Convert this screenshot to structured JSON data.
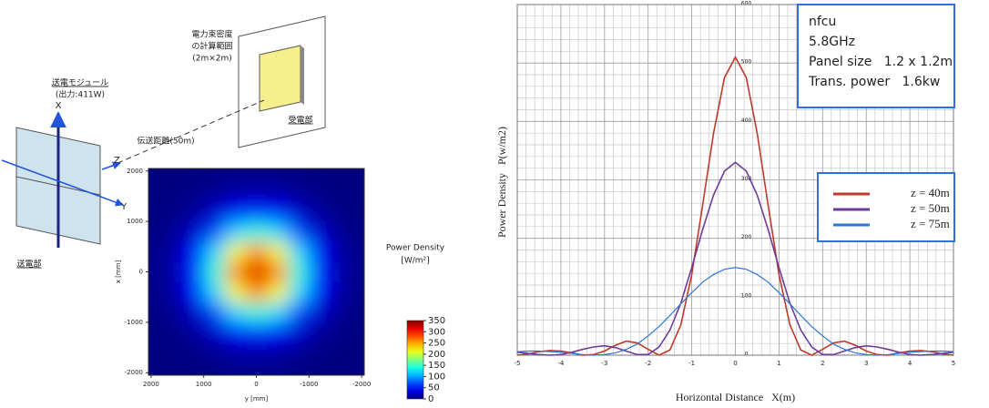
{
  "diagram": {
    "range_label": "電力束密度",
    "range_label_2": "の計算範囲",
    "range_size": "(2m×2m)",
    "receiver": "受電部",
    "module": "送電モジュール",
    "module_power": "(出力:411W)",
    "distance": "伝送距離(50m)",
    "transmitter": "送電部",
    "axis_x": "X",
    "axis_y": "Y",
    "axis_z": "Z"
  },
  "chart_data": [
    {
      "type": "heatmap",
      "xlabel": "y [mm]",
      "ylabel": "x [mm]",
      "x": [
        -2000,
        -1600,
        -1200,
        -800,
        -400,
        0,
        400,
        800,
        1200,
        1600,
        2000
      ],
      "y": [
        -2000,
        -1600,
        -1200,
        -800,
        -400,
        0,
        400,
        800,
        1200,
        1600,
        2000
      ],
      "z": [
        [
          0,
          0,
          0,
          1,
          2,
          2,
          2,
          1,
          0,
          0,
          0
        ],
        [
          0,
          1,
          2,
          6,
          11,
          14,
          11,
          6,
          2,
          1,
          0
        ],
        [
          0,
          2,
          9,
          25,
          44,
          54,
          44,
          25,
          9,
          2,
          0
        ],
        [
          1,
          6,
          25,
          66,
          119,
          145,
          119,
          66,
          25,
          6,
          1
        ],
        [
          2,
          11,
          44,
          119,
          216,
          263,
          216,
          119,
          44,
          11,
          2
        ],
        [
          2,
          14,
          54,
          145,
          263,
          320,
          263,
          145,
          54,
          14,
          2
        ],
        [
          2,
          11,
          44,
          119,
          216,
          263,
          216,
          119,
          44,
          11,
          2
        ],
        [
          1,
          6,
          25,
          66,
          119,
          145,
          119,
          66,
          25,
          6,
          1
        ],
        [
          0,
          2,
          9,
          25,
          44,
          54,
          44,
          25,
          9,
          2,
          0
        ],
        [
          0,
          1,
          2,
          6,
          11,
          14,
          11,
          6,
          2,
          1,
          0
        ],
        [
          0,
          0,
          0,
          1,
          2,
          2,
          2,
          1,
          0,
          0,
          0
        ]
      ],
      "xlim": [
        2050,
        -2050
      ],
      "ylim": [
        -2050,
        2050
      ],
      "xticks": [
        2000,
        1000,
        0,
        -1000,
        -2000
      ],
      "yticks": [
        2000,
        1000,
        0,
        -1000,
        -2000
      ],
      "colorbar": {
        "title": "Power Density",
        "unit": "[W/m²]",
        "clim": [
          0,
          350
        ],
        "ticks": [
          350,
          300,
          250,
          200,
          150,
          100,
          50,
          0
        ]
      }
    },
    {
      "type": "line",
      "xlabel": "Horizontal Distance   X(m)",
      "ylabel": "Power Density   P(w/m2)",
      "annotations": [
        "nfcu",
        "5.8GHz",
        "Panel size   1.2 x 1.2m",
        "Trans. power   1.6kw"
      ],
      "x": [
        -5,
        -4.75,
        -4.5,
        -4.25,
        -4,
        -3.75,
        -3.5,
        -3.25,
        -3,
        -2.75,
        -2.5,
        -2.25,
        -2,
        -1.75,
        -1.5,
        -1.25,
        -1,
        -0.75,
        -0.5,
        -0.25,
        0,
        0.25,
        0.5,
        0.75,
        1,
        1.25,
        1.5,
        1.75,
        2,
        2.25,
        2.5,
        2.75,
        3,
        3.25,
        3.5,
        3.75,
        4,
        4.25,
        4.5,
        4.75,
        5
      ],
      "series": [
        {
          "name": "z = 40m",
          "color": "#c0392b",
          "values": [
            0,
            2,
            6,
            8,
            7,
            4,
            0,
            1,
            7,
            17,
            24,
            21,
            10,
            0,
            9,
            52,
            138,
            257,
            380,
            475,
            510,
            475,
            380,
            257,
            138,
            52,
            9,
            0,
            10,
            21,
            24,
            17,
            7,
            1,
            0,
            4,
            7,
            8,
            6,
            2,
            0
          ]
        },
        {
          "name": "z = 50m",
          "color": "#6a3d9a",
          "values": [
            5,
            3,
            1,
            0,
            1,
            5,
            10,
            14,
            16,
            13,
            7,
            1,
            1,
            14,
            43,
            89,
            150,
            215,
            274,
            315,
            330,
            315,
            274,
            215,
            150,
            89,
            43,
            14,
            1,
            1,
            7,
            13,
            16,
            14,
            10,
            5,
            1,
            0,
            1,
            3,
            5
          ]
        },
        {
          "name": "z = 75m",
          "color": "#2e75d6",
          "values": [
            6,
            7,
            7,
            6,
            5,
            3,
            1,
            0,
            1,
            4,
            10,
            19,
            33,
            49,
            68,
            88,
            107,
            125,
            138,
            147,
            150,
            147,
            138,
            125,
            107,
            88,
            68,
            49,
            33,
            19,
            10,
            4,
            1,
            0,
            1,
            3,
            5,
            6,
            7,
            7,
            6
          ]
        }
      ],
      "xlim": [
        -5,
        5
      ],
      "ylim": [
        0,
        600
      ],
      "xticks": [
        -5,
        -4,
        -3,
        -2,
        -1,
        0,
        1,
        2,
        3,
        4,
        5
      ],
      "yticks": [
        0,
        100,
        200,
        300,
        400,
        500,
        600
      ],
      "grid": true,
      "legend": "right"
    }
  ]
}
